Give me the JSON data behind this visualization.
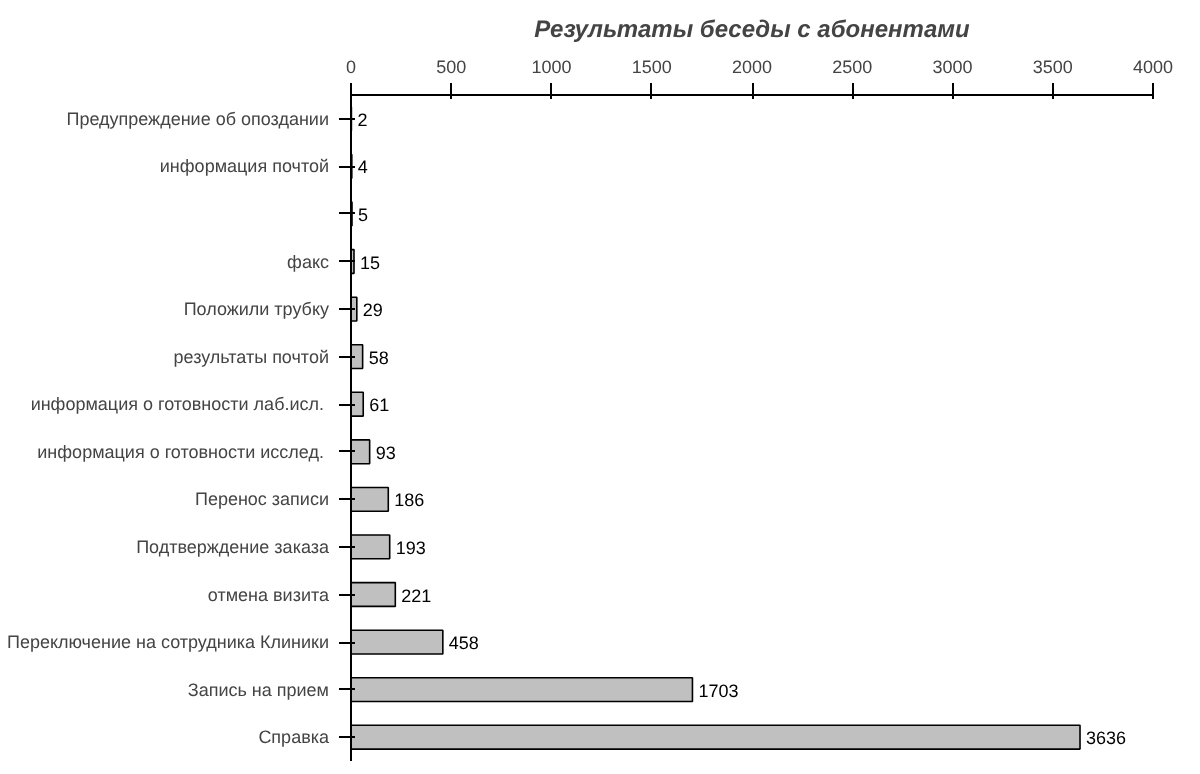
{
  "chart_data": {
    "type": "bar",
    "orientation": "horizontal",
    "title": "Результаты беседы с абонентами",
    "categories": [
      "Предупреждение об опоздании",
      "информация почтой",
      null,
      "факс",
      "Положили трубку",
      "результаты почтой",
      "информация  о готовности лаб.исл.",
      "информация  о готовности исслед.",
      "Перенос записи",
      "Подтверждение заказа",
      "отмена визита",
      "Переключение на сотрудника Клиники",
      "Запись на прием",
      "Справка"
    ],
    "values": [
      2,
      4,
      5,
      15,
      29,
      58,
      61,
      93,
      186,
      193,
      221,
      458,
      1703,
      3636
    ],
    "color": "#c0c0c0",
    "xlim": [
      0,
      4000
    ],
    "xticks": [
      0,
      500,
      1000,
      1500,
      2000,
      2500,
      3000,
      3500,
      4000
    ],
    "data_labels": true,
    "grid": false
  }
}
